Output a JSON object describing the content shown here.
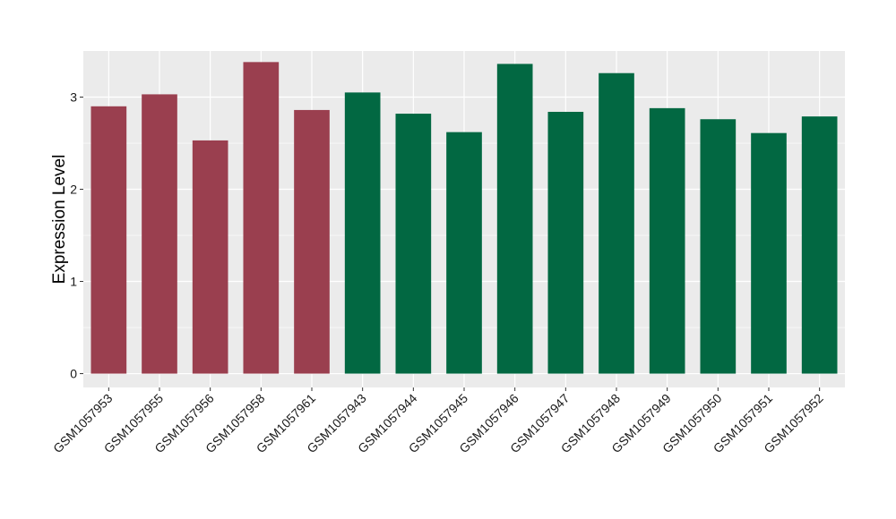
{
  "chart_data": {
    "type": "bar",
    "title": "",
    "xlabel": "",
    "ylabel": "Expression Level",
    "ylim": [
      -0.15,
      3.5
    ],
    "yticks": [
      0,
      1,
      2,
      3
    ],
    "grid": true,
    "legend": "none",
    "categories": [
      "GSM1057953",
      "GSM1057955",
      "GSM1057956",
      "GSM1057958",
      "GSM1057961",
      "GSM1057943",
      "GSM1057944",
      "GSM1057945",
      "GSM1057946",
      "GSM1057947",
      "GSM1057948",
      "GSM1057949",
      "GSM1057950",
      "GSM1057951",
      "GSM1057952"
    ],
    "values": [
      2.9,
      3.03,
      2.53,
      3.38,
      2.86,
      3.05,
      2.82,
      2.62,
      3.36,
      2.84,
      3.26,
      2.88,
      2.76,
      2.61,
      2.79
    ],
    "bar_colors": [
      "#9a3f4f",
      "#9a3f4f",
      "#9a3f4f",
      "#9a3f4f",
      "#9a3f4f",
      "#026842",
      "#026842",
      "#026842",
      "#026842",
      "#026842",
      "#026842",
      "#026842",
      "#026842",
      "#026842",
      "#026842"
    ],
    "panel_background": "#ebebeb",
    "gridline_color": "#ffffff"
  }
}
